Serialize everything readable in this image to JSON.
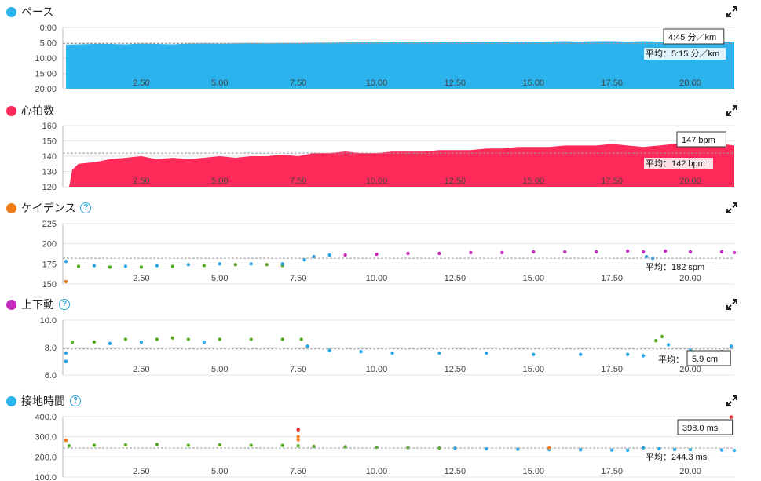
{
  "colors": {
    "pace": "#2ab3ec",
    "hr": "#ff2a5a",
    "cad_icon": "#f07d1a",
    "vo_icon": "#c42dbd",
    "gct_icon": "#2ab3ec",
    "green": "#5aab2a",
    "blue": "#2aa7e6",
    "purple": "#c42dbd",
    "red": "#e02020",
    "orange": "#f07d1a"
  },
  "chart_data": [
    {
      "id": "pace",
      "type": "area",
      "title": "ペース",
      "xticks": [
        "2.50",
        "5.00",
        "7.50",
        "10.00",
        "12.50",
        "15.00",
        "17.50",
        "20.00"
      ],
      "xtick_values": [
        2.5,
        5,
        7.5,
        10,
        12.5,
        15,
        17.5,
        20
      ],
      "xlim": [
        0,
        21.4
      ],
      "yticks": [
        "0:00",
        "5:00",
        "10:00",
        "15:00",
        "20:00"
      ],
      "ytick_values": [
        0,
        5,
        10,
        15,
        20
      ],
      "ylim": [
        0,
        20
      ],
      "inverted": true,
      "x": [
        0.1,
        0.5,
        1.0,
        1.5,
        2.0,
        2.5,
        3.0,
        3.5,
        4.0,
        4.5,
        5.0,
        5.5,
        6.0,
        6.5,
        7.0,
        7.5,
        8.0,
        8.5,
        9.0,
        9.5,
        10.0,
        10.5,
        11.0,
        11.5,
        12.0,
        12.5,
        13.0,
        13.5,
        14.0,
        14.5,
        15.0,
        15.5,
        16.0,
        16.5,
        17.0,
        17.5,
        18.0,
        18.5,
        19.0,
        19.5,
        20.0,
        20.5,
        21.0,
        21.4
      ],
      "values": [
        5.6,
        5.5,
        5.4,
        5.4,
        5.5,
        5.3,
        5.4,
        5.5,
        5.3,
        5.2,
        5.3,
        5.2,
        5.1,
        5.2,
        5.1,
        5.1,
        5.0,
        5.0,
        4.9,
        4.9,
        4.9,
        4.8,
        4.9,
        4.8,
        4.8,
        4.8,
        4.7,
        4.7,
        4.7,
        4.6,
        4.6,
        4.6,
        4.5,
        4.6,
        4.5,
        4.5,
        4.6,
        4.5,
        4.6,
        4.6,
        4.7,
        4.6,
        4.7,
        4.6
      ],
      "average": 5.25,
      "avg_label": "平均：5:15 分／km",
      "hover_label": "4:45 分／km"
    },
    {
      "id": "hr",
      "type": "area",
      "title": "心拍数",
      "xticks": [
        "2.50",
        "5.00",
        "7.50",
        "10.00",
        "12.50",
        "15.00",
        "17.50",
        "20.00"
      ],
      "xtick_values": [
        2.5,
        5,
        7.5,
        10,
        12.5,
        15,
        17.5,
        20
      ],
      "xlim": [
        0,
        21.4
      ],
      "yticks": [
        "160",
        "150",
        "140",
        "130",
        "120"
      ],
      "ytick_values": [
        160,
        150,
        140,
        130,
        120
      ],
      "ylim": [
        120,
        160
      ],
      "x": [
        0.2,
        0.3,
        0.5,
        1.0,
        1.5,
        2.0,
        2.5,
        3.0,
        3.5,
        4.0,
        4.5,
        5.0,
        5.5,
        6.0,
        6.5,
        7.0,
        7.5,
        8.0,
        8.5,
        9.0,
        9.5,
        10.0,
        10.5,
        11.0,
        11.5,
        12.0,
        12.5,
        13.0,
        13.5,
        14.0,
        14.5,
        15.0,
        15.5,
        16.0,
        16.5,
        17.0,
        17.5,
        18.0,
        18.5,
        19.0,
        19.5,
        20.0,
        20.5,
        21.0,
        21.4
      ],
      "values": [
        120,
        131,
        135,
        136,
        138,
        139,
        140,
        138,
        139,
        138,
        139,
        140,
        139,
        140,
        140,
        141,
        140,
        142,
        142,
        143,
        142,
        142,
        143,
        143,
        143,
        144,
        144,
        144,
        145,
        145,
        146,
        146,
        146,
        147,
        147,
        147,
        148,
        147,
        146,
        147,
        148,
        148,
        147,
        148,
        147
      ],
      "average": 142,
      "avg_label": "平均：142 bpm",
      "hover_label": "147 bpm"
    },
    {
      "id": "cadence",
      "type": "scatter",
      "title": "ケイデンス",
      "xticks": [
        "2.50",
        "5.00",
        "7.50",
        "10.00",
        "12.50",
        "15.00",
        "17.50",
        "20.00"
      ],
      "xtick_values": [
        2.5,
        5,
        7.5,
        10,
        12.5,
        15,
        17.5,
        20
      ],
      "xlim": [
        0,
        21.4
      ],
      "yticks": [
        "225",
        "200",
        "175",
        "150"
      ],
      "ytick_values": [
        225,
        200,
        175,
        150
      ],
      "ylim": [
        150,
        225
      ],
      "series": [
        {
          "color": "green",
          "x": [
            0.5,
            1.5,
            2.5,
            3.5,
            4.5,
            5.5,
            6.5,
            7.0
          ],
          "values": [
            172,
            171,
            171,
            172,
            173,
            174,
            174,
            173
          ]
        },
        {
          "color": "blue",
          "x": [
            0.1,
            1.0,
            2.0,
            3.0,
            4.0,
            5.0,
            6.0,
            7.0,
            7.7,
            8.0,
            8.5,
            18.6,
            18.8
          ],
          "values": [
            178,
            173,
            172,
            173,
            174,
            175,
            175,
            175,
            180,
            184,
            186,
            184,
            182
          ]
        },
        {
          "color": "purple",
          "x": [
            9.0,
            10.0,
            11.0,
            12.0,
            13.0,
            14.0,
            15.0,
            16.0,
            17.0,
            18.0,
            18.5,
            19.2,
            20.0,
            21.0,
            21.4
          ],
          "values": [
            186,
            187,
            188,
            188,
            189,
            189,
            190,
            190,
            190,
            191,
            190,
            191,
            190,
            190,
            189
          ]
        },
        {
          "color": "orange",
          "x": [
            0.1
          ],
          "values": [
            153
          ]
        }
      ],
      "average": 182,
      "avg_label": "平均：182 spm"
    },
    {
      "id": "vo",
      "type": "scatter",
      "title": "上下動",
      "xticks": [
        "2.50",
        "5.00",
        "7.50",
        "10.00",
        "12.50",
        "15.00",
        "17.50",
        "20.00"
      ],
      "xtick_values": [
        2.5,
        5,
        7.5,
        10,
        12.5,
        15,
        17.5,
        20
      ],
      "xlim": [
        0,
        21.4
      ],
      "yticks": [
        "10.0",
        "8.0",
        "6.0"
      ],
      "ytick_values": [
        10,
        8,
        6
      ],
      "ylim": [
        6,
        10
      ],
      "series": [
        {
          "color": "green",
          "x": [
            0.3,
            1.0,
            2.0,
            3.0,
            3.5,
            4.0,
            5.0,
            6.0,
            7.0,
            7.6,
            18.9,
            19.1
          ],
          "values": [
            8.4,
            8.4,
            8.6,
            8.6,
            8.7,
            8.6,
            8.6,
            8.6,
            8.6,
            8.6,
            8.5,
            8.8
          ]
        },
        {
          "color": "blue",
          "x": [
            0.1,
            0.1,
            1.5,
            2.5,
            4.5,
            7.8,
            8.5,
            9.5,
            10.5,
            12.0,
            13.5,
            15.0,
            16.5,
            18.0,
            18.5,
            19.3,
            20.0,
            21.0,
            21.3
          ],
          "values": [
            7.0,
            7.6,
            8.3,
            8.4,
            8.4,
            8.1,
            7.8,
            7.7,
            7.6,
            7.6,
            7.6,
            7.5,
            7.5,
            7.5,
            7.4,
            8.2,
            7.8,
            7.7,
            8.1
          ]
        }
      ],
      "average": 7.9,
      "avg_label": "平均：",
      "hover_label": "5.9 cm"
    },
    {
      "id": "gct",
      "type": "scatter",
      "title": "接地時間",
      "xticks": [
        "2.50",
        "5.00",
        "7.50",
        "10.00",
        "12.50",
        "15.00",
        "17.50",
        "20.00"
      ],
      "xtick_values": [
        2.5,
        5,
        7.5,
        10,
        12.5,
        15,
        17.5,
        20
      ],
      "xlim": [
        0,
        21.4
      ],
      "yticks": [
        "400.0",
        "300.0",
        "200.0",
        "100.0"
      ],
      "ytick_values": [
        400,
        300,
        200,
        100
      ],
      "ylim": [
        100,
        400
      ],
      "series": [
        {
          "color": "green",
          "x": [
            0.2,
            1.0,
            2.0,
            3.0,
            4.0,
            5.0,
            6.0,
            7.0,
            7.5,
            8.0,
            9.0,
            10.0,
            11.0,
            12.0
          ],
          "values": [
            255,
            258,
            260,
            262,
            258,
            260,
            258,
            257,
            255,
            252,
            250,
            248,
            246,
            244
          ]
        },
        {
          "color": "blue",
          "x": [
            12.5,
            13.5,
            14.5,
            15.5,
            16.5,
            17.5,
            18.0,
            18.5,
            19.0,
            19.5,
            20.0,
            21.0,
            21.4
          ],
          "values": [
            243,
            240,
            238,
            236,
            235,
            234,
            233,
            245,
            240,
            236,
            235,
            234,
            232
          ]
        },
        {
          "color": "orange",
          "x": [
            0.1,
            7.5,
            7.5,
            15.5
          ],
          "values": [
            282,
            300,
            285,
            245
          ]
        },
        {
          "color": "red",
          "x": [
            7.5,
            21.3
          ],
          "values": [
            335,
            398
          ]
        }
      ],
      "average": 244.3,
      "avg_label": "平均：244.3 ms",
      "hover_label": "398.0 ms"
    }
  ]
}
